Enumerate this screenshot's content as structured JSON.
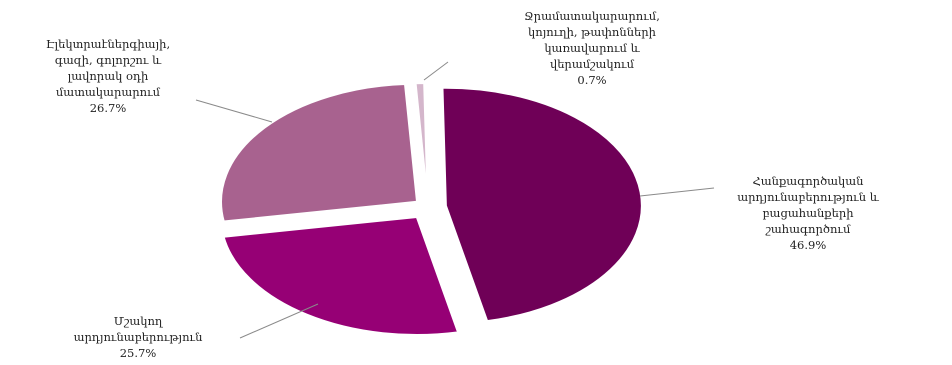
{
  "chart_data": {
    "type": "pie",
    "title": "",
    "exploded": true,
    "slices": [
      {
        "label_lines": [
          "Հանքագործական",
          "արդյունաբերություն և",
          "բացահանքերի",
          "շահագործում"
        ],
        "percent_label": "46.9%",
        "value": 46.9,
        "color": "#6f0057"
      },
      {
        "label_lines": [
          "Մշակող",
          "արդյունաբերություն"
        ],
        "percent_label": "25.7%",
        "value": 25.7,
        "color": "#960075"
      },
      {
        "label_lines": [
          "Էլեկտրաէներգիայի,",
          "գազի, գոլորշու և",
          "լավորակ օդի",
          "մատակարարում"
        ],
        "percent_label": "26.7%",
        "value": 26.7,
        "color": "#a8628f"
      },
      {
        "label_lines": [
          "Ջրամատակարարում,",
          "կոյուղի, թափոնների",
          "կառավարում և",
          "վերամշակում"
        ],
        "percent_label": "0.7%",
        "value": 0.7,
        "color": "#d4b6cb"
      }
    ]
  }
}
